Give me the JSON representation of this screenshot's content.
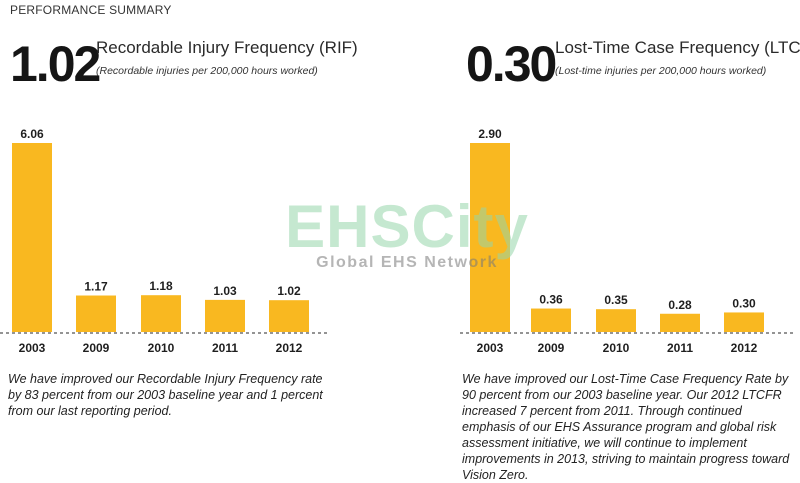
{
  "header": {
    "section_title": "PERFORMANCE SUMMARY"
  },
  "panels": [
    {
      "big_number": "1.02",
      "title": "Recordable Injury Frequency (RIF)",
      "subtitle": "(Recordable injuries per 200,000 hours worked)",
      "caption": "We have improved our Recordable Injury Frequency rate by 83 percent from our 2003 baseline year and 1 percent from our last reporting period."
    },
    {
      "big_number": "0.30",
      "title": "Lost-Time Case Frequency (LTCFR)",
      "subtitle": "(Lost-time injuries per 200,000 hours worked)",
      "caption": "We have improved our Lost-Time Case Frequency Rate by 90 percent from our 2003 baseline year. Our 2012 LTCFR increased 7 percent from 2011. Through continued emphasis of our EHS Assurance program and global risk assessment initiative, we will continue to implement improvements in 2013, striving to maintain progress toward Vision Zero."
    }
  ],
  "watermark": {
    "text": "EHSCity",
    "subtext": "Global EHS Network"
  },
  "colors": {
    "bar": "#f9b820",
    "axis": "#555555",
    "text": "#1f1f1f"
  },
  "chart_data": [
    {
      "type": "bar",
      "title": "Recordable Injury Frequency (RIF)",
      "categories": [
        "2003",
        "2009",
        "2010",
        "2011",
        "2012"
      ],
      "values": [
        6.06,
        1.17,
        1.18,
        1.03,
        1.02
      ],
      "value_labels": [
        "6.06",
        "1.17",
        "1.18",
        "1.03",
        "1.02"
      ],
      "ylim": [
        0,
        6.06
      ],
      "grid": false
    },
    {
      "type": "bar",
      "title": "Lost-Time Case Frequency (LTCFR)",
      "categories": [
        "2003",
        "2009",
        "2010",
        "2011",
        "2012"
      ],
      "values": [
        2.9,
        0.36,
        0.35,
        0.28,
        0.3
      ],
      "value_labels": [
        "2.90",
        "0.36",
        "0.35",
        "0.28",
        "0.30"
      ],
      "ylim": [
        0,
        2.9
      ],
      "grid": false
    }
  ]
}
